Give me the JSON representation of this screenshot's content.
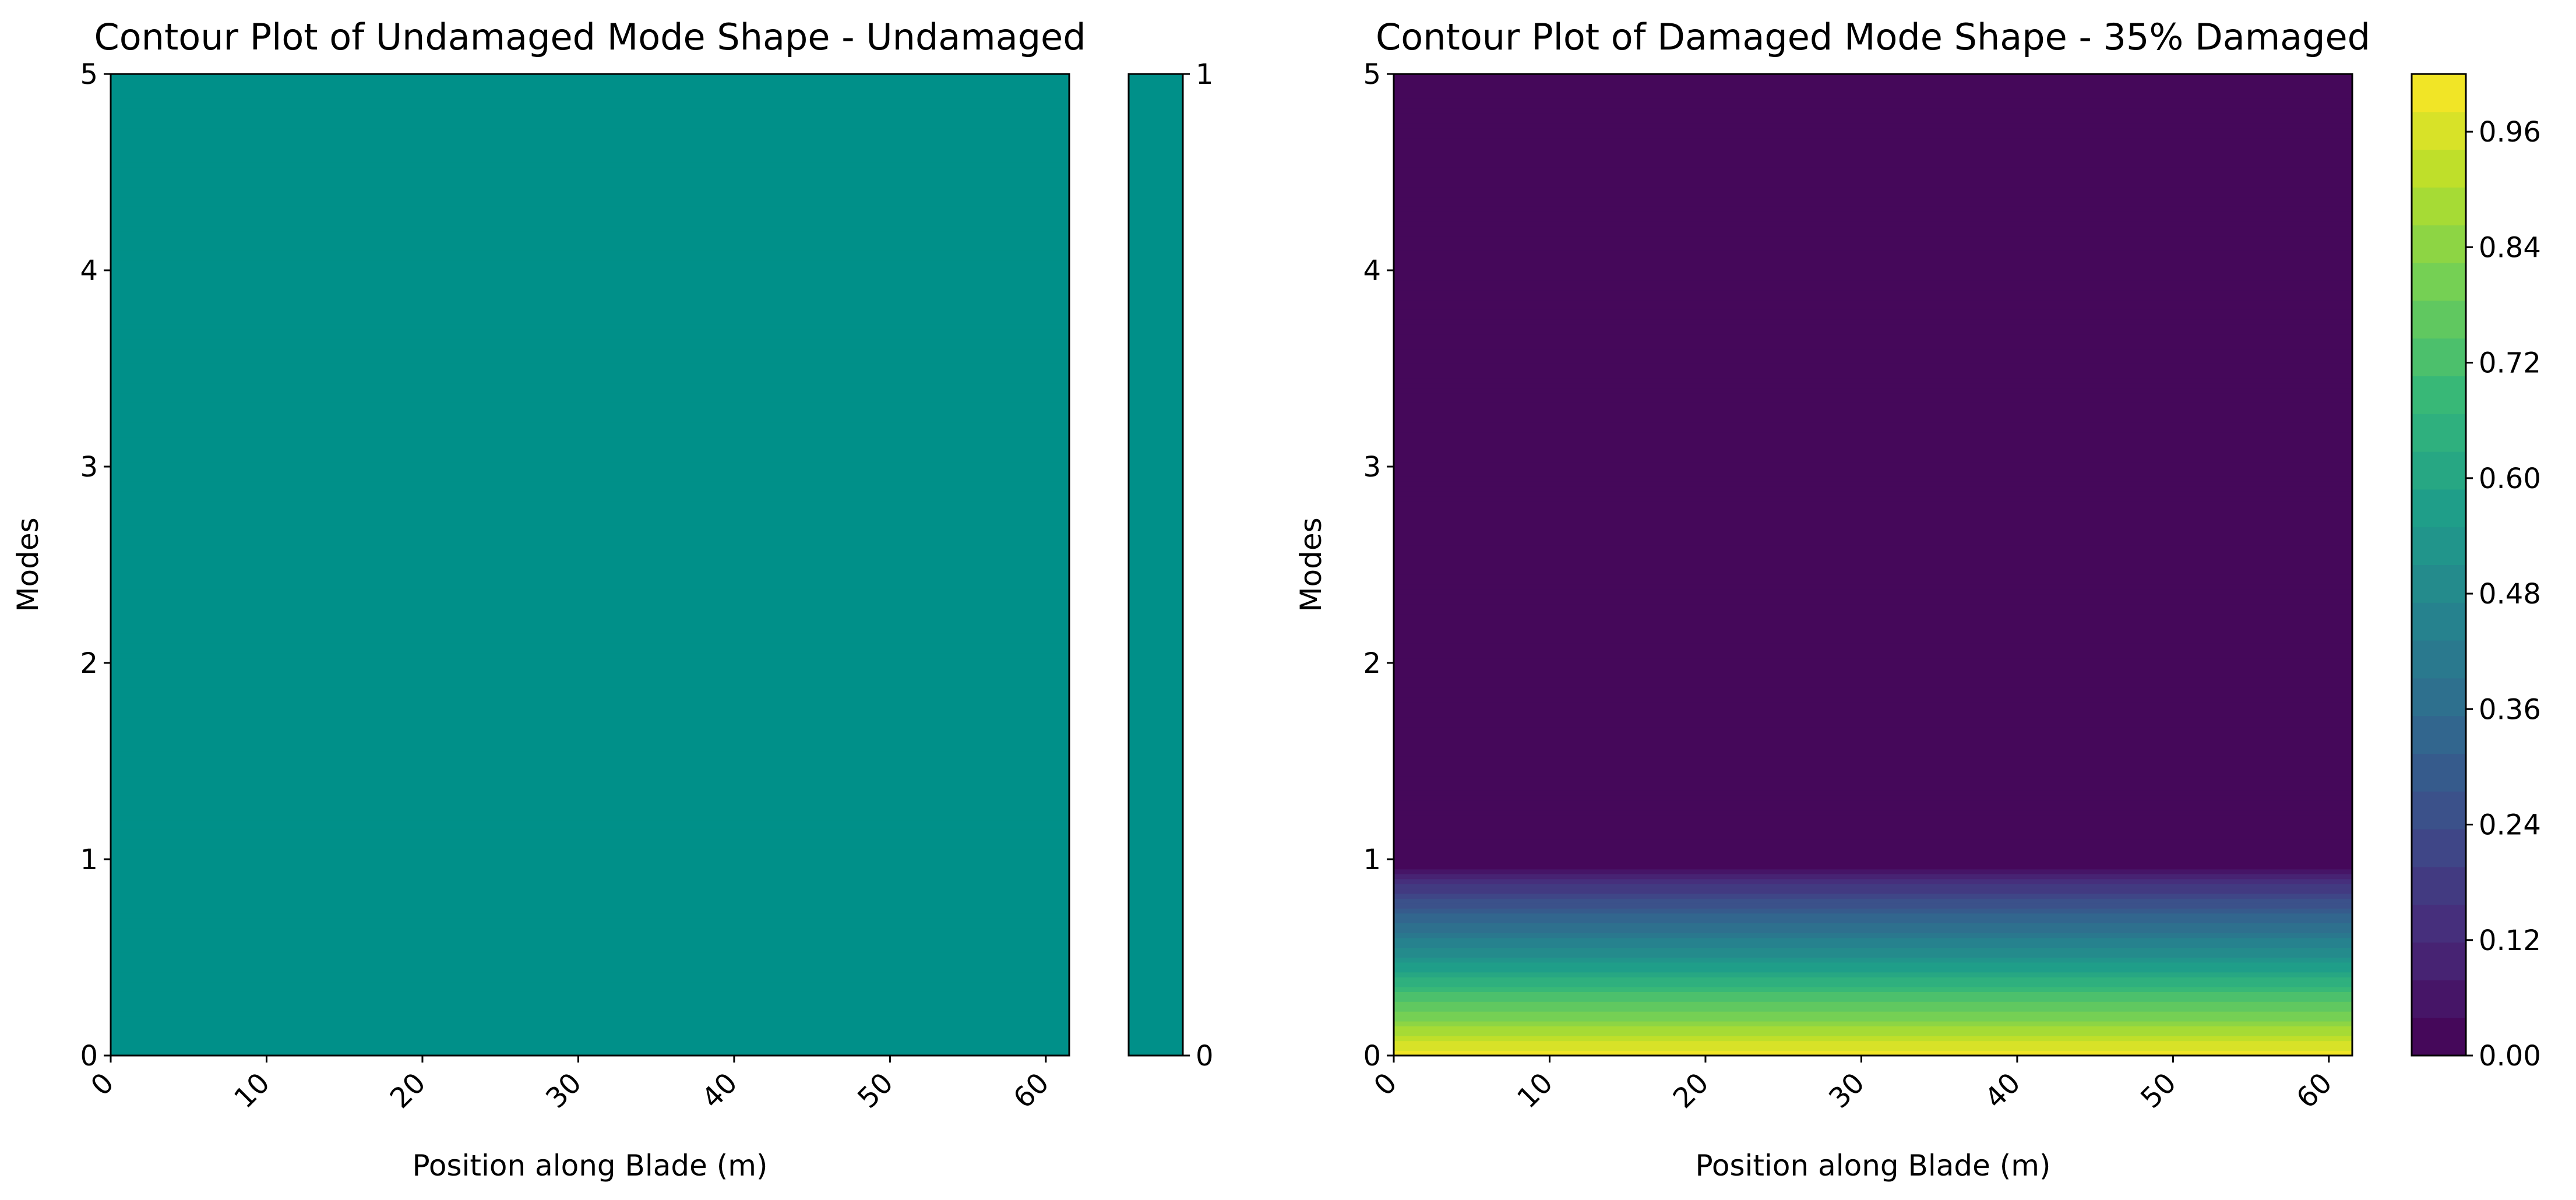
{
  "chart_data": [
    {
      "type": "heatmap",
      "subtype": "contourf",
      "title": "Contour Plot of Undamaged Mode Shape - Undamaged",
      "xlabel": "Position along Blade (m)",
      "ylabel": "Modes",
      "xlim": [
        0,
        61.5
      ],
      "ylim": [
        0,
        5
      ],
      "x_ticks": [
        "0",
        "10",
        "20",
        "30",
        "40",
        "50",
        "60"
      ],
      "y_ticks": [
        "0",
        "1",
        "2",
        "3",
        "4",
        "5"
      ],
      "x_tick_rotation_deg": 45,
      "grid": false,
      "colorbar": {
        "ticks": [
          "0",
          "1"
        ],
        "range": [
          0,
          1
        ],
        "colormap": "viridis"
      },
      "z_description": "uniform field",
      "z_profile": [
        {
          "y": 0,
          "value": 0.5
        },
        {
          "y": 5,
          "value": 0.5
        }
      ],
      "fill_color": "#009089"
    },
    {
      "type": "heatmap",
      "subtype": "contourf",
      "title": "Contour Plot of Damaged Mode Shape - 35% Damaged",
      "xlabel": "Position along Blade (m)",
      "ylabel": "Modes",
      "xlim": [
        0,
        61.5
      ],
      "ylim": [
        0,
        5
      ],
      "x_ticks": [
        "0",
        "10",
        "20",
        "30",
        "40",
        "50",
        "60"
      ],
      "y_ticks": [
        "0",
        "1",
        "2",
        "3",
        "4",
        "5"
      ],
      "x_tick_rotation_deg": 45,
      "grid": false,
      "colorbar": {
        "ticks": [
          "0.00",
          "0.12",
          "0.24",
          "0.36",
          "0.48",
          "0.60",
          "0.72",
          "0.84",
          "0.96"
        ],
        "range": [
          0,
          1.02
        ],
        "levels": 26,
        "colormap": "viridis"
      },
      "z_description": "constant along x; decreases with mode value",
      "z_profile": [
        {
          "y": 0.0,
          "value": 1.0
        },
        {
          "y": 0.1,
          "value": 0.91
        },
        {
          "y": 0.2,
          "value": 0.81
        },
        {
          "y": 0.3,
          "value": 0.72
        },
        {
          "y": 0.4,
          "value": 0.62
        },
        {
          "y": 0.5,
          "value": 0.52
        },
        {
          "y": 0.6,
          "value": 0.42
        },
        {
          "y": 0.7,
          "value": 0.33
        },
        {
          "y": 0.8,
          "value": 0.23
        },
        {
          "y": 0.9,
          "value": 0.12
        },
        {
          "y": 0.95,
          "value": 0.04
        },
        {
          "y": 1.0,
          "value": 0.0
        },
        {
          "y": 5.0,
          "value": 0.0
        }
      ]
    }
  ],
  "colors": {
    "viridis_stops": [
      "#440154",
      "#482878",
      "#3e4989",
      "#31688e",
      "#26828e",
      "#1f9e89",
      "#35b779",
      "#6ece58",
      "#b5de2b",
      "#fde725"
    ],
    "axis": "#000000",
    "background": "#ffffff"
  }
}
